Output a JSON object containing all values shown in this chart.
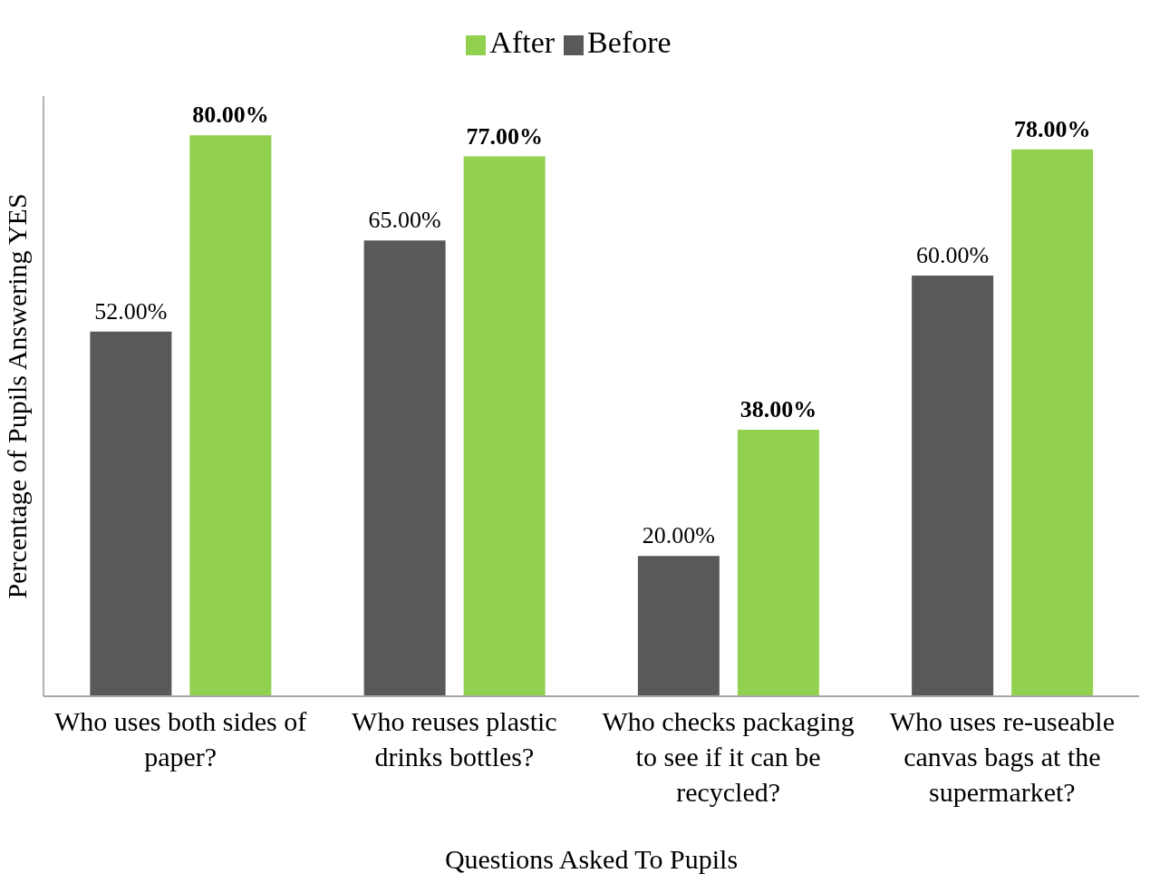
{
  "chart_data": {
    "type": "bar",
    "relative": false,
    "xlabel": "Questions Asked To Pupils",
    "ylabel": "Percentage of Pupils Answering YES",
    "categories": [
      "Who uses both sides of paper?",
      "Who reuses plastic drinks bottles?",
      "Who checks packaging to see if it can be recycled?",
      "Who uses re-useable canvas bags at the supermarket?"
    ],
    "series": [
      {
        "name": "Before",
        "color": "#595959",
        "values": [
          52,
          65,
          20,
          60
        ],
        "value_labels": [
          "52.00%",
          "65.00%",
          "20.00%",
          "60.00%"
        ]
      },
      {
        "name": "After",
        "color": "#92d050",
        "values": [
          80,
          77,
          38,
          78
        ],
        "value_labels": [
          "80.00%",
          "77.00%",
          "38.00%",
          "78.00%"
        ]
      }
    ],
    "legend": "top",
    "tick_labels": "x"
  }
}
